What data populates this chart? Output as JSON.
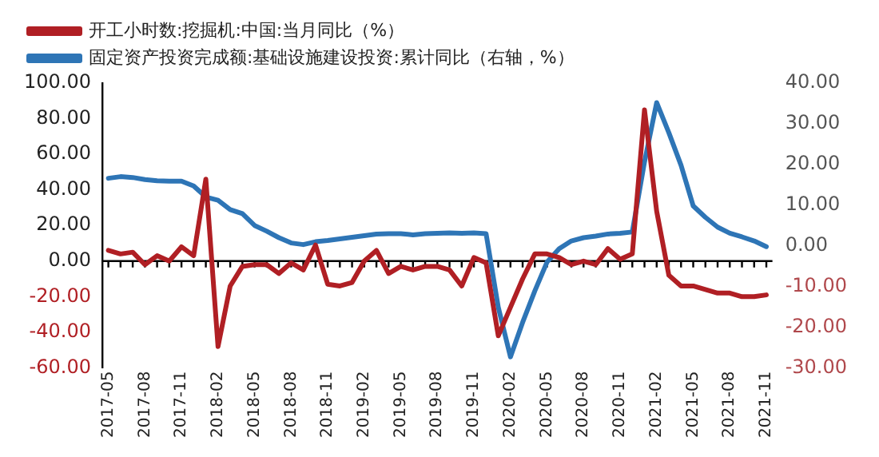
{
  "chart_data": {
    "type": "line",
    "categories": [
      "2017-05",
      null,
      null,
      "2017-08",
      null,
      null,
      "2017-11",
      null,
      null,
      "2018-02",
      null,
      null,
      "2018-05",
      null,
      null,
      "2018-08",
      null,
      null,
      "2018-11",
      null,
      null,
      "2019-02",
      null,
      null,
      "2019-05",
      null,
      null,
      "2019-08",
      null,
      null,
      "2019-11",
      null,
      null,
      "2020-02",
      null,
      null,
      "2020-05",
      null,
      null,
      "2020-08",
      null,
      null,
      "2020-11",
      null,
      null,
      "2021-02",
      null,
      null,
      "2021-05",
      null,
      null,
      "2021-08",
      null,
      null,
      "2021-11"
    ],
    "series": [
      {
        "name": "开工小时数:挖掘机:中国:当月同比（%）",
        "color": "#b01f24",
        "values": [
          6,
          4,
          5,
          -2,
          3,
          0,
          8,
          3,
          46,
          -48,
          -14,
          -3,
          -2,
          -2,
          -7,
          -1,
          -5,
          9,
          -13,
          -14,
          -12,
          0,
          6,
          -7,
          -3,
          -5,
          -3,
          -3,
          -5,
          -14,
          2,
          -1,
          -42,
          -26,
          -10,
          4,
          4,
          2,
          -2,
          0,
          -2,
          7,
          1,
          4,
          85,
          28,
          -8,
          -14,
          -14,
          -16,
          -18,
          -18,
          -20,
          -20,
          -19
        ]
      },
      {
        "name": "固定资产投资完成额:基础设施建设投资:累计同比（右轴，%）",
        "color": "#2e75b6",
        "axis": "y2",
        "values": [
          16.6,
          17,
          16.8,
          16.3,
          16,
          15.9,
          15.9,
          14.7,
          12,
          11.2,
          8.9,
          7.9,
          5,
          3.6,
          2,
          0.7,
          0.3,
          1,
          1.3,
          1.7,
          2.1,
          2.5,
          2.9,
          3,
          3,
          2.7,
          3,
          3.1,
          3.2,
          3.1,
          3.2,
          3,
          -15.1,
          -27.3,
          -18.8,
          -11.1,
          -4,
          -0.7,
          1.2,
          2,
          2.4,
          2.9,
          3.1,
          3.4,
          20.6,
          35.2,
          27.8,
          19.8,
          9.8,
          7,
          4.6,
          3.1,
          2.2,
          1.2,
          -0.2
        ]
      }
    ],
    "ylim": [
      -60,
      100
    ],
    "yticks": [
      {
        "value": -60,
        "label": "-60.00"
      },
      {
        "value": -40,
        "label": "-40.00"
      },
      {
        "value": -20,
        "label": "-20.00"
      },
      {
        "value": 0,
        "label": "0.00"
      },
      {
        "value": 20,
        "label": "20.00"
      },
      {
        "value": 40,
        "label": "40.00"
      },
      {
        "value": 60,
        "label": "60.00"
      },
      {
        "value": 80,
        "label": "80.00"
      },
      {
        "value": 100,
        "label": "100.00"
      }
    ],
    "y2lim": [
      -30,
      40
    ],
    "y2ticks": [
      {
        "value": -30,
        "label": "-30.00"
      },
      {
        "value": -20,
        "label": "-20.00"
      },
      {
        "value": -10,
        "label": "-10.00"
      },
      {
        "value": 0,
        "label": "0.00"
      },
      {
        "value": 10,
        "label": "10.00"
      },
      {
        "value": 20,
        "label": "20.00"
      },
      {
        "value": 30,
        "label": "30.00"
      },
      {
        "value": 40,
        "label": "40.00"
      }
    ],
    "ref_lines": [
      {
        "axis": "y",
        "value": 0,
        "color": "#000000"
      }
    ],
    "grid": false,
    "legend": "top left",
    "marker": "none",
    "line_style": "solid"
  }
}
